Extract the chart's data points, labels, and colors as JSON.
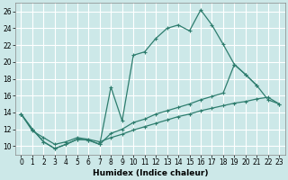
{
  "xlabel": "Humidex (Indice chaleur)",
  "bg_color": "#cce8e8",
  "grid_color": "#ffffff",
  "line_color": "#2e7d6e",
  "xlim": [
    -0.5,
    23.5
  ],
  "ylim": [
    9.0,
    27.0
  ],
  "yticks": [
    10,
    12,
    14,
    16,
    18,
    20,
    22,
    24,
    26
  ],
  "xticks": [
    0,
    1,
    2,
    3,
    4,
    5,
    6,
    7,
    8,
    9,
    10,
    11,
    12,
    13,
    14,
    15,
    16,
    17,
    18,
    19,
    20,
    21,
    22,
    23
  ],
  "line1_x": [
    0,
    1,
    2,
    3,
    4,
    5,
    6,
    7,
    8,
    9,
    10,
    11,
    12,
    13,
    14,
    15,
    16,
    17,
    18,
    19,
    20,
    21
  ],
  "line1_y": [
    13.8,
    12.0,
    10.5,
    9.7,
    10.2,
    10.8,
    10.7,
    10.2,
    17.0,
    13.0,
    20.8,
    21.2,
    22.8,
    24.0,
    24.4,
    23.7,
    26.2,
    24.4,
    22.1,
    19.7,
    18.5,
    17.2
  ],
  "line2_x": [
    0,
    1,
    2,
    3,
    4,
    5,
    6,
    7,
    8,
    9,
    10,
    11,
    12,
    13,
    14,
    15,
    16,
    17,
    18,
    19,
    20,
    21,
    22,
    23
  ],
  "line2_y": [
    13.8,
    12.0,
    10.5,
    9.7,
    10.2,
    10.8,
    10.7,
    10.2,
    11.5,
    12.0,
    12.8,
    13.2,
    13.8,
    14.2,
    14.6,
    15.0,
    15.5,
    15.9,
    16.3,
    19.7,
    18.5,
    17.2,
    15.5,
    15.0
  ],
  "line3_x": [
    0,
    1,
    2,
    3,
    4,
    5,
    6,
    7,
    8,
    9,
    10,
    11,
    12,
    13,
    14,
    15,
    16,
    17,
    18,
    19,
    20,
    21,
    22,
    23
  ],
  "line3_y": [
    13.8,
    11.8,
    11.0,
    10.2,
    10.5,
    11.0,
    10.8,
    10.5,
    11.0,
    11.4,
    11.9,
    12.3,
    12.7,
    13.1,
    13.5,
    13.8,
    14.2,
    14.5,
    14.8,
    15.1,
    15.3,
    15.6,
    15.8,
    15.0
  ]
}
